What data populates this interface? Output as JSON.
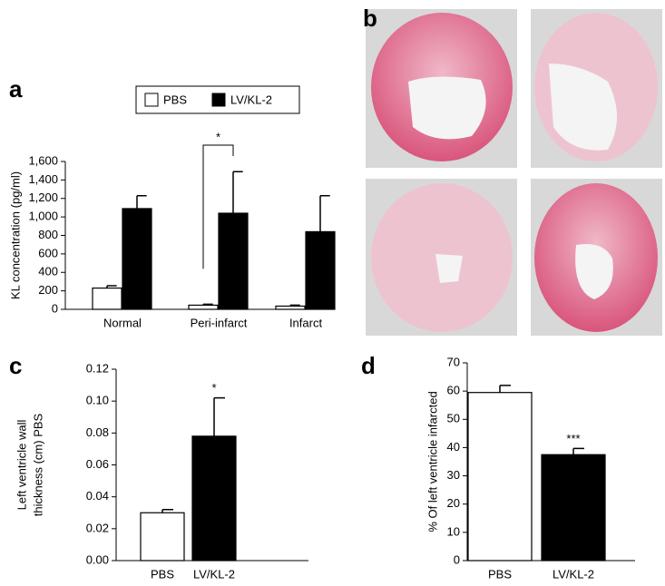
{
  "chart_data": [
    {
      "type": "bar",
      "panel": "a",
      "ylabel": "KL concentration (pg/ml)",
      "categories": [
        "Normal",
        "Peri-infarct",
        "Infarct"
      ],
      "series": [
        {
          "name": "PBS",
          "color": "#ffffff",
          "values": [
            230,
            45,
            35
          ],
          "errors": [
            25,
            10,
            10
          ]
        },
        {
          "name": "LV/KL-2",
          "color": "#000000",
          "values": [
            1090,
            1040,
            840
          ],
          "errors": [
            140,
            450,
            390
          ]
        }
      ],
      "ylim": [
        0,
        1600
      ],
      "yticks": [
        0,
        200,
        400,
        600,
        800,
        {
          "value": 1000,
          "label": "1,000"
        },
        {
          "value": 1200,
          "label": "1,200"
        },
        {
          "value": 1400,
          "label": "1,400"
        },
        {
          "value": 1600,
          "label": "1,600"
        }
      ],
      "annotations": [
        "*"
      ]
    },
    {
      "type": "bar",
      "panel": "c",
      "ylabel": [
        "Left ventricle wall",
        "thickness (cm) PBS"
      ],
      "categories": [
        "PBS",
        "LV/KL-2"
      ],
      "values": [
        0.03,
        0.078
      ],
      "errors": [
        0.002,
        0.024
      ],
      "colors": [
        "#ffffff",
        "#000000"
      ],
      "ylim": [
        0,
        0.12
      ],
      "yticks": [
        {
          "value": 0,
          "label": "0.00"
        },
        0.02,
        0.04,
        0.06,
        0.08,
        {
          "value": 0.1,
          "label": "0.10"
        },
        0.12
      ],
      "annotations": [
        "*"
      ]
    },
    {
      "type": "bar",
      "panel": "d",
      "ylabel": "% Of left ventricle infarcted",
      "categories": [
        "PBS",
        "LV/KL-2"
      ],
      "values": [
        59.5,
        37.5
      ],
      "errors": [
        2.5,
        2.2
      ],
      "colors": [
        "#ffffff",
        "#000000"
      ],
      "ylim": [
        0,
        70
      ],
      "yticks": [
        0,
        10,
        20,
        30,
        40,
        50,
        60,
        70
      ],
      "annotations": [
        "***"
      ]
    }
  ],
  "images": {
    "panel": "b"
  }
}
